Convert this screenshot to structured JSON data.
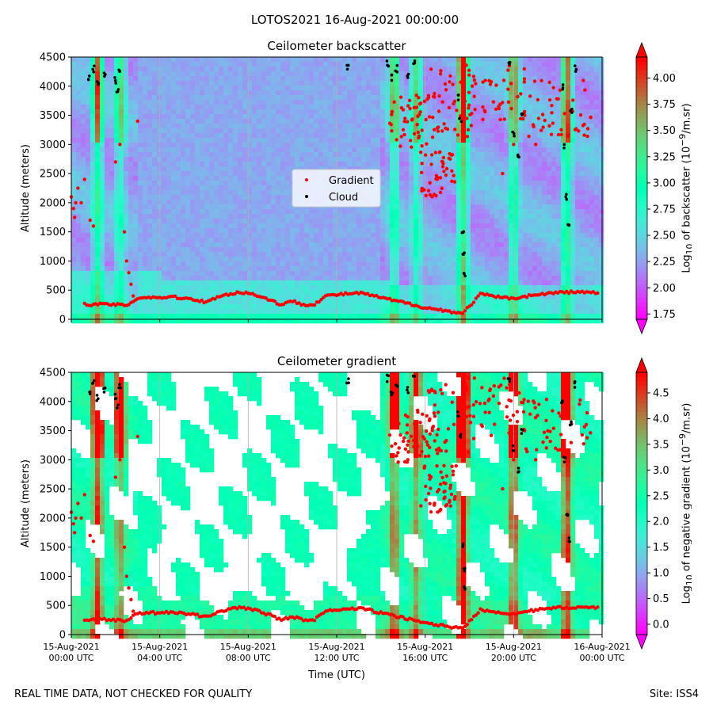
{
  "figure": {
    "suptitle": "LOTOS2021 16-Aug-2021 00:00:00",
    "footer_left": "REAL TIME DATA, NOT CHECKED FOR QUALITY",
    "footer_right": "Site: ISS4"
  },
  "chart_data": [
    {
      "type": "heatmap",
      "title": "Ceilometer backscatter",
      "ylabel": "Altitude (meters)",
      "ylim": [
        0,
        4500
      ],
      "yticks": [
        "0",
        "500",
        "1000",
        "1500",
        "2000",
        "2500",
        "3000",
        "3500",
        "4000",
        "4500"
      ],
      "xlim_hours_utc": [
        0,
        24
      ],
      "xticks": [
        "",
        "",
        "",
        "",
        "",
        "",
        ""
      ],
      "grid": "vertical",
      "legend": {
        "placement": "center",
        "entries": [
          {
            "name": "Gradient",
            "color": "#ff0000"
          },
          {
            "name": "Cloud",
            "color": "#000000"
          }
        ]
      },
      "colorbar": {
        "label_html": "Log<sub>10</sub> of backscatter (10<sup>−9</sup>/m.sr)",
        "range": [
          1.7,
          4.2
        ],
        "ticks": [
          "1.75",
          "2.00",
          "2.25",
          "2.50",
          "2.75",
          "3.00",
          "3.25",
          "3.50",
          "3.75",
          "4.00"
        ],
        "extend": "both",
        "colormap": "rainbow"
      },
      "layers": {
        "noise_mask": false,
        "feature_intensity": 1.0
      },
      "gradient_points": {
        "boundary_layer": [
          [
            0.6,
            260
          ],
          [
            1,
            250
          ],
          [
            1.5,
            260
          ],
          [
            2,
            250
          ],
          [
            2.5,
            240
          ],
          [
            3,
            360
          ],
          [
            3.5,
            380
          ],
          [
            4,
            370
          ],
          [
            4.5,
            390
          ],
          [
            5,
            360
          ],
          [
            5.5,
            350
          ],
          [
            6,
            300
          ],
          [
            6.5,
            360
          ],
          [
            7,
            420
          ],
          [
            7.5,
            460
          ],
          [
            8,
            450
          ],
          [
            8.5,
            400
          ],
          [
            9,
            330
          ],
          [
            9.5,
            250
          ],
          [
            10,
            310
          ],
          [
            10.5,
            250
          ],
          [
            11,
            260
          ],
          [
            11.5,
            400
          ],
          [
            12,
            420
          ],
          [
            12.5,
            440
          ],
          [
            13,
            450
          ],
          [
            13.5,
            420
          ],
          [
            14,
            370
          ],
          [
            15,
            290
          ],
          [
            16,
            200
          ],
          [
            17.7,
            100
          ],
          [
            18.5,
            430
          ],
          [
            19.5,
            370
          ],
          [
            20,
            360
          ],
          [
            21,
            420
          ],
          [
            22,
            460
          ],
          [
            23,
            470
          ],
          [
            23.9,
            450
          ]
        ],
        "surface_layer": [
          [
            0,
            2100
          ],
          [
            0.1,
            1900
          ],
          [
            0.15,
            1750
          ],
          [
            0.2,
            2000
          ],
          [
            0.3,
            2250
          ],
          [
            0.45,
            2000
          ],
          [
            0.6,
            2400
          ],
          [
            0.85,
            1700
          ],
          [
            1,
            1600
          ],
          [
            2,
            2700
          ],
          [
            2.2,
            3000
          ],
          [
            2.4,
            1500
          ],
          [
            2.5,
            1000
          ],
          [
            2.6,
            800
          ],
          [
            2.7,
            600
          ],
          [
            2.8,
            400
          ],
          [
            3,
            3400
          ],
          [
            19.5,
            2500
          ],
          [
            20,
            3000
          ],
          [
            20.5,
            3500
          ],
          [
            21,
            3000
          ]
        ],
        "upper_clusters": [
          {
            "center_hour": 15.3,
            "center_alt": 3400,
            "spread_hours": 0.9,
            "spread_alt": 450
          },
          {
            "center_hour": 17.2,
            "center_alt": 3700,
            "spread_hours": 1.1,
            "spread_alt": 600
          },
          {
            "center_hour": 19.1,
            "center_alt": 3900,
            "spread_hours": 1.4,
            "spread_alt": 550
          },
          {
            "center_hour": 21.9,
            "center_alt": 3600,
            "spread_hours": 1.6,
            "spread_alt": 500
          },
          {
            "center_hour": 16.6,
            "center_alt": 2500,
            "spread_hours": 0.8,
            "spread_alt": 400
          }
        ]
      },
      "cloud_points": [
        [
          0.8,
          4150
        ],
        [
          1.0,
          4300
        ],
        [
          1.2,
          4050
        ],
        [
          1.5,
          4200
        ],
        [
          2.0,
          4100
        ],
        [
          2.1,
          3900
        ],
        [
          2.2,
          4250
        ],
        [
          12.5,
          4350
        ],
        [
          14.3,
          4400
        ],
        [
          14.5,
          4150
        ],
        [
          14.7,
          4300
        ],
        [
          15.2,
          4200
        ],
        [
          15.5,
          4400
        ],
        [
          17.5,
          3800
        ],
        [
          17.6,
          3400
        ],
        [
          17.7,
          1500
        ],
        [
          17.75,
          1100
        ],
        [
          17.8,
          800
        ],
        [
          19.8,
          4400
        ],
        [
          20.0,
          3200
        ],
        [
          20.2,
          2800
        ],
        [
          20.4,
          3500
        ],
        [
          22.2,
          4000
        ],
        [
          22.3,
          3000
        ],
        [
          22.4,
          2100
        ],
        [
          22.5,
          1600
        ],
        [
          22.6,
          3600
        ],
        [
          22.8,
          4300
        ]
      ]
    },
    {
      "type": "heatmap",
      "title": "Ceilometer gradient",
      "xlabel": "Time (UTC)",
      "ylabel": "Altitude (meters)",
      "ylim": [
        0,
        4500
      ],
      "yticks": [
        "0",
        "500",
        "1000",
        "1500",
        "2000",
        "2500",
        "3000",
        "3500",
        "4000",
        "4500"
      ],
      "xlim_hours_utc": [
        0,
        24
      ],
      "xticks": [
        "15-Aug-2021\n00:00 UTC",
        "15-Aug-2021\n04:00 UTC",
        "15-Aug-2021\n08:00 UTC",
        "15-Aug-2021\n12:00 UTC",
        "15-Aug-2021\n16:00 UTC",
        "15-Aug-2021\n20:00 UTC",
        "16-Aug-2021\n00:00 UTC"
      ],
      "grid": "vertical",
      "colorbar": {
        "label_html": "Log<sub>10</sub> of negative gradient (10<sup>−9</sup>/m.sr)",
        "range": [
          -0.2,
          4.9
        ],
        "ticks": [
          "0.0",
          "0.5",
          "1.0",
          "1.5",
          "2.0",
          "2.5",
          "3.0",
          "3.5",
          "4.0",
          "4.5"
        ],
        "extend": "both",
        "colormap": "rainbow"
      },
      "layers": {
        "noise_mask": true,
        "feature_intensity": 1.4
      },
      "gradient_points": "same-as-backscatter",
      "cloud_points": "same-as-backscatter"
    }
  ]
}
